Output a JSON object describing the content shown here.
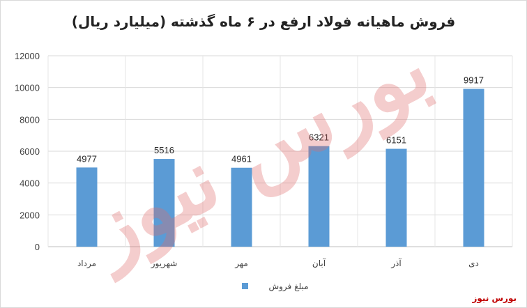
{
  "chart_data": {
    "type": "bar",
    "title": "فروش ماهیانه فولاد ارفع در ۶ ماه گذشته (میلیارد ریال)",
    "categories": [
      "مرداد",
      "شهریور",
      "مهر",
      "آبان",
      "آذر",
      "دی"
    ],
    "series": [
      {
        "name": "مبلغ فروش",
        "values": [
          4977,
          5516,
          4961,
          6321,
          6151,
          9917
        ],
        "color": "#5b9bd5"
      }
    ],
    "data_labels": [
      "4977",
      "5516",
      "4961",
      "6321",
      "6151",
      "9917"
    ],
    "ylim": [
      0,
      12000
    ],
    "y_ticks": [
      "0",
      "2000",
      "4000",
      "6000",
      "8000",
      "10000",
      "12000"
    ],
    "grid": true,
    "legend_position": "bottom"
  },
  "watermark": "بورس نیوز",
  "source_credit": "بورس نیوز"
}
